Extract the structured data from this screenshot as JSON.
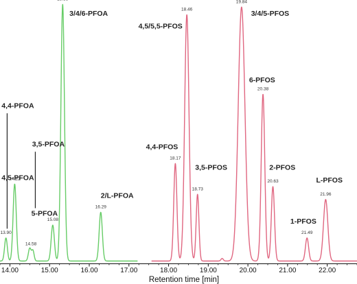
{
  "chart_data": {
    "type": "line",
    "title": "",
    "xlabel": "Retention time [min]",
    "ylabel": "",
    "xlim": [
      13.75,
      22.75
    ],
    "ylim": [
      0,
      100
    ],
    "x_ticks": [
      "14.00",
      "15.00",
      "16.00",
      "17.00",
      "18.00",
      "19.00",
      "20.00",
      "21.00",
      "22.00"
    ],
    "x_tick_values": [
      14,
      15,
      16,
      17,
      18,
      19,
      20,
      21,
      22
    ],
    "series": [
      {
        "color": "#66cc66",
        "x_range": [
          13.75,
          17.22
        ],
        "peaks": [
          {
            "rt": 13.9,
            "height": 9,
            "width": 0.035
          },
          {
            "rt": 14.12,
            "height": 30,
            "width": 0.04
          },
          {
            "rt": 14.5,
            "height": 5,
            "width": 0.035
          },
          {
            "rt": 14.58,
            "height": 4,
            "width": 0.03
          },
          {
            "rt": 15.08,
            "height": 14,
            "width": 0.04
          },
          {
            "rt": 15.33,
            "height": 100,
            "width": 0.045
          },
          {
            "rt": 16.29,
            "height": 19,
            "width": 0.04
          }
        ]
      },
      {
        "color": "#e06680",
        "x_range": [
          17.57,
          22.75
        ],
        "peaks": [
          {
            "rt": 18.17,
            "height": 38,
            "width": 0.04
          },
          {
            "rt": 18.46,
            "height": 96,
            "width": 0.055
          },
          {
            "rt": 18.73,
            "height": 26,
            "width": 0.035
          },
          {
            "rt": 19.35,
            "height": 1,
            "width": 0.03
          },
          {
            "rt": 19.84,
            "height": 99,
            "width": 0.085
          },
          {
            "rt": 20.38,
            "height": 65,
            "width": 0.045
          },
          {
            "rt": 20.63,
            "height": 29,
            "width": 0.04
          },
          {
            "rt": 21.49,
            "height": 9,
            "width": 0.04
          },
          {
            "rt": 21.96,
            "height": 24,
            "width": 0.055
          }
        ]
      }
    ],
    "rt_labels": [
      {
        "text": "13.90",
        "x": 13.9,
        "y": 11
      },
      {
        "text": "14.12",
        "x": 14.12,
        "y": 32
      },
      {
        "text": "14.58",
        "x": 14.53,
        "y": 6.5
      },
      {
        "text": "15.08",
        "x": 15.08,
        "y": 16
      },
      {
        "text": "15.33",
        "x": 15.33,
        "y": 102
      },
      {
        "text": "16.29",
        "x": 16.29,
        "y": 21
      },
      {
        "text": "18.17",
        "x": 18.17,
        "y": 40
      },
      {
        "text": "18.46",
        "x": 18.46,
        "y": 98
      },
      {
        "text": "18.73",
        "x": 18.73,
        "y": 28
      },
      {
        "text": "19.84",
        "x": 19.84,
        "y": 101
      },
      {
        "text": "20.38",
        "x": 20.38,
        "y": 67
      },
      {
        "text": "20.63",
        "x": 20.63,
        "y": 31
      },
      {
        "text": "21.49",
        "x": 21.49,
        "y": 11
      },
      {
        "text": "21.96",
        "x": 21.96,
        "y": 26
      }
    ],
    "annotations": [
      {
        "text": "3/4/6-PFOA",
        "x": 15.5,
        "y": 96,
        "anchor": "start"
      },
      {
        "text": "4,4-PFOA",
        "x": 13.79,
        "y": 60,
        "anchor": "start"
      },
      {
        "text": "4,5-PFOA",
        "x": 13.79,
        "y": 32,
        "anchor": "start"
      },
      {
        "text": "3,5-PFOA",
        "x": 14.56,
        "y": 45,
        "anchor": "start"
      },
      {
        "text": "5-PFOA",
        "x": 14.54,
        "y": 18,
        "anchor": "start"
      },
      {
        "text": "2/L-PFOA",
        "x": 16.29,
        "y": 25,
        "anchor": "start"
      },
      {
        "text": "4,5/5,5-PFOS",
        "x": 18.35,
        "y": 91,
        "anchor": "end"
      },
      {
        "text": "3/4/5-PFOS",
        "x": 20.08,
        "y": 96,
        "anchor": "start"
      },
      {
        "text": "4,4-PFOS",
        "x": 17.43,
        "y": 44,
        "anchor": "start"
      },
      {
        "text": "3,5-PFOS",
        "x": 18.67,
        "y": 36,
        "anchor": "start"
      },
      {
        "text": "6-PFOS",
        "x": 20.03,
        "y": 70,
        "anchor": "start"
      },
      {
        "text": "2-PFOS",
        "x": 20.54,
        "y": 36,
        "anchor": "start"
      },
      {
        "text": "L-PFOS",
        "x": 21.72,
        "y": 31,
        "anchor": "start"
      },
      {
        "text": "1-PFOS",
        "x": 21.07,
        "y": 15,
        "anchor": "start"
      }
    ],
    "leader_lines": [
      {
        "x": 13.93,
        "y_from": 58,
        "y_to": 13
      },
      {
        "x": 14.64,
        "y_from": 43,
        "y_to": 21
      }
    ]
  }
}
